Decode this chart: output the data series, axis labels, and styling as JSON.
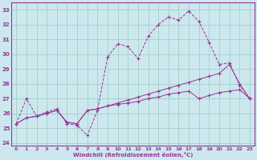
{
  "xlabel": "Windchill (Refroidissement éolien,°C)",
  "bg_color": "#cce8ee",
  "grid_color": "#99ccbb",
  "line_color": "#993399",
  "xlim_min": -0.5,
  "xlim_max": 23.5,
  "ylim_min": 23.8,
  "ylim_max": 33.5,
  "yticks": [
    24,
    25,
    26,
    27,
    28,
    29,
    30,
    31,
    32,
    33
  ],
  "xticks": [
    0,
    1,
    2,
    3,
    4,
    5,
    6,
    7,
    8,
    9,
    10,
    11,
    12,
    13,
    14,
    15,
    16,
    17,
    18,
    19,
    20,
    21,
    22,
    23
  ],
  "line1_x": [
    0,
    1,
    2,
    3,
    4,
    5,
    6,
    7,
    8,
    9,
    10,
    11,
    12,
    13,
    14,
    15,
    16,
    17,
    18,
    19,
    20,
    21,
    22,
    23
  ],
  "line1_y": [
    25.3,
    27.0,
    25.8,
    26.1,
    26.3,
    25.3,
    25.2,
    24.5,
    26.2,
    29.8,
    30.7,
    30.5,
    29.7,
    31.2,
    32.0,
    32.5,
    32.3,
    32.9,
    32.2,
    30.8,
    29.3,
    29.4,
    27.9,
    27.0
  ],
  "line2_x": [
    0,
    1,
    2,
    3,
    4,
    5,
    6,
    7,
    8,
    9,
    10,
    11,
    12,
    13,
    14,
    15,
    16,
    17,
    18,
    19,
    20,
    21,
    22,
    23
  ],
  "line2_y": [
    25.3,
    25.7,
    25.8,
    26.0,
    26.2,
    25.4,
    25.3,
    26.2,
    26.3,
    26.5,
    26.7,
    26.9,
    27.1,
    27.3,
    27.5,
    27.7,
    27.9,
    28.1,
    28.3,
    28.5,
    28.7,
    29.3,
    28.0,
    27.0
  ],
  "line3_x": [
    0,
    1,
    2,
    3,
    4,
    5,
    6,
    7,
    8,
    9,
    10,
    11,
    12,
    13,
    14,
    15,
    16,
    17,
    18,
    19,
    20,
    21,
    22,
    23
  ],
  "line3_y": [
    25.3,
    25.7,
    25.8,
    26.0,
    26.2,
    25.4,
    25.3,
    26.2,
    26.3,
    26.5,
    26.6,
    26.7,
    26.8,
    27.0,
    27.1,
    27.3,
    27.4,
    27.5,
    27.0,
    27.2,
    27.4,
    27.5,
    27.6,
    27.0
  ]
}
